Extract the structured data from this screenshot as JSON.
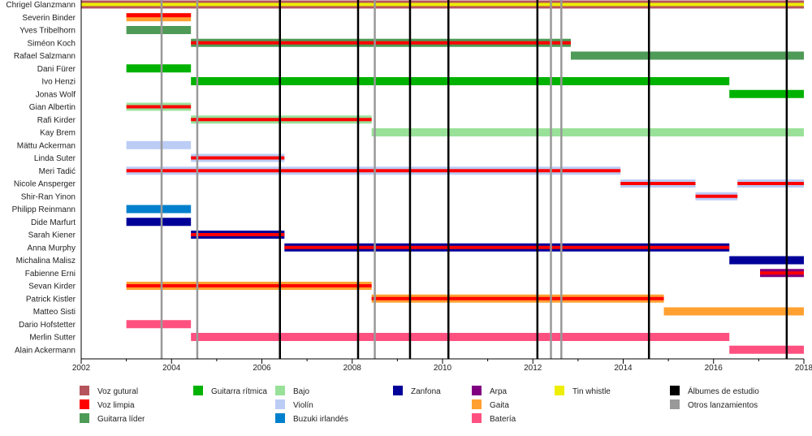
{
  "chart_data": {
    "type": "timeline",
    "title": "",
    "xlabel": "",
    "ylabel": "",
    "xlim": [
      2002,
      2018
    ],
    "x_ticks": [
      2002,
      2004,
      2006,
      2008,
      2010,
      2012,
      2014,
      2016,
      2018
    ],
    "colors": {
      "voz_gutural": "#b5545c",
      "voz_limpia": "#ff0000",
      "guitarra_lider": "#4e9a57",
      "guitarra_ritmica": "#00b200",
      "bajo": "#99e199",
      "violin": "#bbccf5",
      "buzuki": "#0080cc",
      "zanfona": "#000099",
      "arpa": "#800080",
      "gaita": "#ffa030",
      "bateria": "#ff5080",
      "tin_whistle": "#eeee00",
      "albumes": "#000000",
      "otros": "#999999"
    },
    "members": [
      {
        "name": "Chrigel Glanzmann",
        "bars": [
          {
            "start": 2002,
            "end": 2018,
            "main": "voz_gutural",
            "stripe": "tin_whistle"
          }
        ]
      },
      {
        "name": "Severin Binder",
        "bars": [
          {
            "start": 2003.0,
            "end": 2004.43,
            "main": "gaita",
            "top": "voz_limpia"
          }
        ]
      },
      {
        "name": "Yves Tribelhorn",
        "bars": [
          {
            "start": 2003.0,
            "end": 2004.43,
            "main": "guitarra_lider"
          }
        ]
      },
      {
        "name": "Siméon Koch",
        "bars": [
          {
            "start": 2004.43,
            "end": 2012.84,
            "main": "guitarra_lider",
            "stripe": "voz_limpia"
          }
        ]
      },
      {
        "name": "Rafael Salzmann",
        "bars": [
          {
            "start": 2012.84,
            "end": 2018,
            "main": "guitarra_lider"
          }
        ]
      },
      {
        "name": "Dani Fürer",
        "bars": [
          {
            "start": 2003.0,
            "end": 2004.43,
            "main": "guitarra_ritmica"
          }
        ]
      },
      {
        "name": "Ivo Henzi",
        "bars": [
          {
            "start": 2004.43,
            "end": 2016.35,
            "main": "guitarra_ritmica"
          }
        ]
      },
      {
        "name": "Jonas Wolf",
        "bars": [
          {
            "start": 2016.35,
            "end": 2018,
            "main": "guitarra_ritmica"
          }
        ]
      },
      {
        "name": "Gian Albertin",
        "bars": [
          {
            "start": 2003.0,
            "end": 2004.43,
            "main": "bajo",
            "stripe": "voz_limpia"
          }
        ]
      },
      {
        "name": "Rafi Kirder",
        "bars": [
          {
            "start": 2004.43,
            "end": 2008.43,
            "main": "bajo",
            "stripe": "voz_limpia"
          }
        ]
      },
      {
        "name": "Kay Brem",
        "bars": [
          {
            "start": 2008.43,
            "end": 2018,
            "main": "bajo"
          }
        ]
      },
      {
        "name": "Mättu Ackerman",
        "bars": [
          {
            "start": 2003.0,
            "end": 2004.43,
            "main": "violin"
          }
        ]
      },
      {
        "name": "Linda Suter",
        "bars": [
          {
            "start": 2004.43,
            "end": 2006.5,
            "main": "violin",
            "stripe": "voz_limpia"
          }
        ]
      },
      {
        "name": "Meri Tadić",
        "bars": [
          {
            "start": 2003.0,
            "end": 2013.94,
            "main": "violin",
            "stripe": "voz_limpia"
          }
        ]
      },
      {
        "name": "Nicole Ansperger",
        "bars": [
          {
            "start": 2013.94,
            "end": 2015.6,
            "main": "violin",
            "stripe": "voz_limpia"
          },
          {
            "start": 2016.53,
            "end": 2018,
            "main": "violin",
            "stripe": "voz_limpia"
          }
        ]
      },
      {
        "name": "Shir-Ran Yinon",
        "bars": [
          {
            "start": 2015.6,
            "end": 2016.53,
            "main": "violin",
            "stripe": "voz_limpia"
          }
        ]
      },
      {
        "name": "Philipp Reinmann",
        "bars": [
          {
            "start": 2003.0,
            "end": 2004.43,
            "main": "buzuki"
          }
        ]
      },
      {
        "name": "Dide Marfurt",
        "bars": [
          {
            "start": 2003.0,
            "end": 2004.43,
            "main": "zanfona"
          }
        ]
      },
      {
        "name": "Sarah Kiener",
        "bars": [
          {
            "start": 2004.43,
            "end": 2006.5,
            "main": "zanfona",
            "stripe": "voz_limpia"
          }
        ]
      },
      {
        "name": "Anna Murphy",
        "bars": [
          {
            "start": 2006.5,
            "end": 2016.35,
            "main": "zanfona",
            "stripe": "voz_limpia"
          }
        ]
      },
      {
        "name": "Michalina Malisz",
        "bars": [
          {
            "start": 2016.35,
            "end": 2018,
            "main": "zanfona"
          }
        ]
      },
      {
        "name": "Fabienne Erni",
        "bars": [
          {
            "start": 2017.03,
            "end": 2018,
            "main": "arpa",
            "stripe": "voz_limpia"
          }
        ]
      },
      {
        "name": "Sevan Kirder",
        "bars": [
          {
            "start": 2003.0,
            "end": 2008.43,
            "main": "gaita",
            "stripe": "voz_limpia"
          }
        ]
      },
      {
        "name": "Patrick Kistler",
        "bars": [
          {
            "start": 2008.43,
            "end": 2014.9,
            "main": "gaita",
            "stripe": "voz_limpia"
          }
        ]
      },
      {
        "name": "Matteo Sisti",
        "bars": [
          {
            "start": 2014.9,
            "end": 2018,
            "main": "gaita"
          }
        ]
      },
      {
        "name": "Dario Hofstetter",
        "bars": [
          {
            "start": 2003.0,
            "end": 2004.43,
            "main": "bateria"
          }
        ]
      },
      {
        "name": "Merlin Sutter",
        "bars": [
          {
            "start": 2004.43,
            "end": 2016.35,
            "main": "bateria"
          }
        ]
      },
      {
        "name": "Alain Ackermann",
        "bars": [
          {
            "start": 2016.35,
            "end": 2018,
            "main": "bateria"
          }
        ]
      }
    ],
    "studio_albums": [
      2006.4,
      2008.13,
      2009.28,
      2010.13,
      2012.1,
      2014.57,
      2017.62
    ],
    "other_releases": [
      2003.78,
      2004.57,
      2008.5,
      2012.4,
      2012.63
    ],
    "legend": [
      {
        "label": "Voz gutural",
        "color": "voz_gutural"
      },
      {
        "label": "Voz limpia",
        "color": "voz_limpia"
      },
      {
        "label": "Guitarra líder",
        "color": "guitarra_lider"
      },
      {
        "label": "Guitarra rítmica",
        "color": "guitarra_ritmica"
      },
      {
        "label": "Bajo",
        "color": "bajo"
      },
      {
        "label": "Violín",
        "color": "violin"
      },
      {
        "label": "Buzuki irlandés",
        "color": "buzuki"
      },
      {
        "label": "Zanfona",
        "color": "zanfona"
      },
      {
        "label": "Arpa",
        "color": "arpa"
      },
      {
        "label": "Gaita",
        "color": "gaita"
      },
      {
        "label": "Batería",
        "color": "bateria"
      },
      {
        "label": "Tin whistle",
        "color": "tin_whistle"
      },
      {
        "label": "Álbumes de estudio",
        "color": "albumes"
      },
      {
        "label": "Otros lanzamientos",
        "color": "otros"
      }
    ],
    "legend_position": "bottom"
  }
}
